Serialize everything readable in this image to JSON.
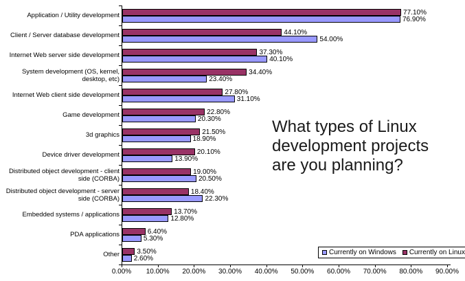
{
  "page": {
    "background": "#ffffff"
  },
  "question_text": "What types of Linux development projects are you planning?",
  "chart_data": {
    "type": "bar",
    "orientation": "horizontal",
    "title": "What types of Linux development projects are you planning?",
    "categories": [
      "Application / Utility development",
      "Client / Server database development",
      "Internet Web server side development",
      "System development (OS, kernel, desktop, etc)",
      "Internet Web client side development",
      "Game development",
      "3d graphics",
      "Device driver development",
      "Distributed object development - client side (CORBA)",
      "Distributed object development - server side (CORBA)",
      "Embedded systems / applications",
      "PDA applications",
      "Other"
    ],
    "series": [
      {
        "name": "Currently on Linux",
        "color": "#993366",
        "values": [
          77.1,
          44.1,
          37.3,
          34.4,
          27.8,
          22.8,
          21.5,
          20.1,
          19.0,
          18.4,
          13.7,
          6.4,
          3.5
        ]
      },
      {
        "name": "Currently on Windows",
        "color": "#9999FF",
        "values": [
          76.9,
          54.0,
          40.1,
          23.4,
          31.1,
          20.3,
          18.9,
          13.9,
          20.5,
          22.3,
          12.8,
          5.3,
          2.6
        ]
      }
    ],
    "value_label_format": "0.00%",
    "xlim": [
      0,
      90
    ],
    "x_tick_labels": [
      "0.00%",
      "10.00%",
      "20.00%",
      "30.00%",
      "40.00%",
      "50.00%",
      "60.00%",
      "70.00%",
      "80.00%",
      "90.00%"
    ],
    "grid": false,
    "bar_border_color": "#000000",
    "legend": {
      "position": "bottom-right",
      "items": [
        {
          "label": "Currently on Windows",
          "color": "#9999FF"
        },
        {
          "label": "Currently on Linux",
          "color": "#993366"
        }
      ]
    }
  }
}
